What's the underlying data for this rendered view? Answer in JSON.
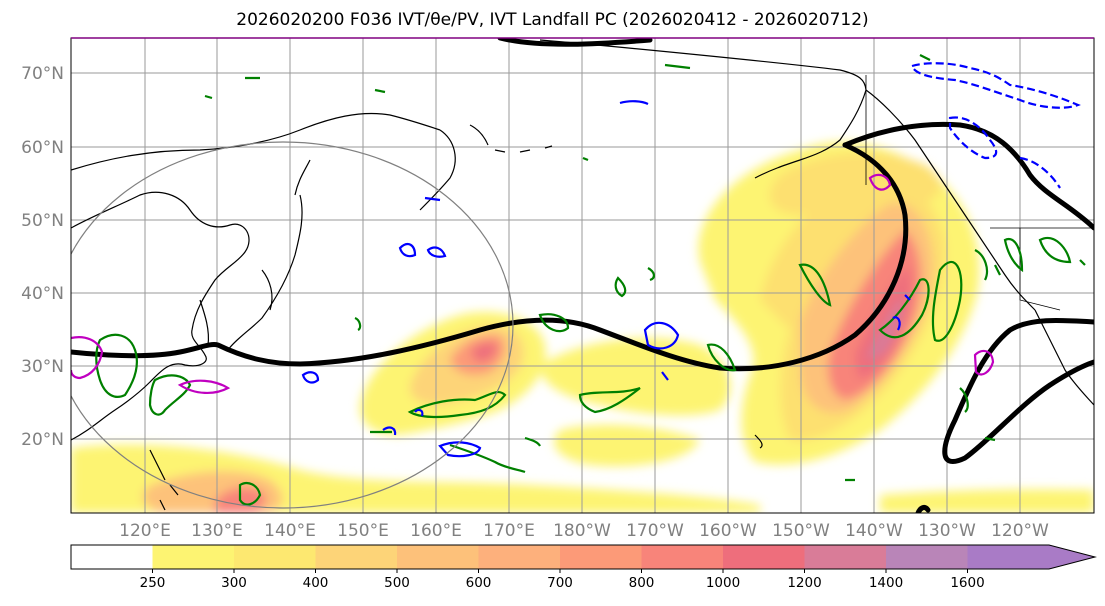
{
  "title": "2026020200 F036 IVT/θe/PV, IVT Landfall PC (2026020412 - 2026020712)",
  "map": {
    "lat_labels": [
      "70°N",
      "60°N",
      "50°N",
      "40°N",
      "30°N",
      "20°N"
    ],
    "lon_labels": [
      "120°E",
      "130°E",
      "140°E",
      "150°E",
      "160°E",
      "170°E",
      "180°W",
      "170°W",
      "160°W",
      "150°W",
      "140°W",
      "130°W",
      "120°W"
    ]
  },
  "colorbar": {
    "ticks": [
      "250",
      "300",
      "400",
      "500",
      "600",
      "700",
      "800",
      "1000",
      "1200",
      "1400",
      "1600"
    ],
    "colors": [
      "#ffffff",
      "#fdf472",
      "#fde870",
      "#fdd478",
      "#fdc17a",
      "#fdb07c",
      "#fc9a78",
      "#f8847a",
      "#ee6e7c",
      "#d97c98",
      "#b985b8",
      "#a97bc6"
    ]
  },
  "contour_colors": {
    "theta_e": "#000000",
    "pv_green": "#008000",
    "pv_blue": "#0000ff",
    "pv_magenta": "#c000c0",
    "circle": "#808080"
  }
}
